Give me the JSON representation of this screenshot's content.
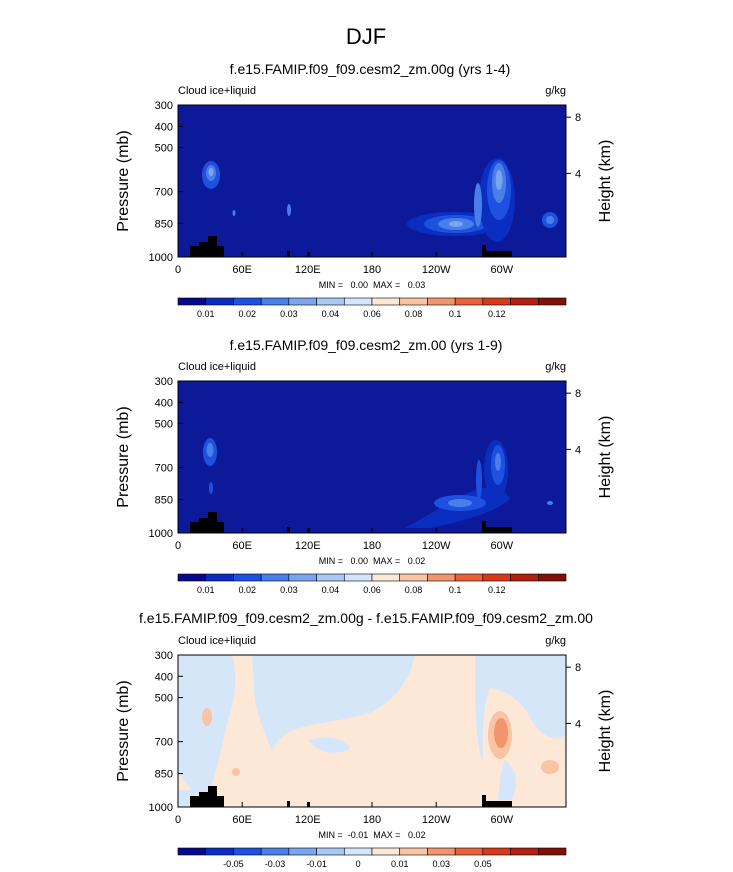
{
  "page_title": "DJF",
  "chart_data": [
    {
      "type": "contour",
      "title": "f.e15.FAMIP.f09_f09.cesm2_zm.00g (yrs 1-4)",
      "left_label": "Cloud ice+liquid",
      "units": "g/kg",
      "ylabel": "Pressure (mb)",
      "ylabel_right": "Height (km)",
      "pressure_ticks": [
        "300",
        "400",
        "500",
        "700",
        "850",
        "1000"
      ],
      "height_ticks": [
        "8",
        "4"
      ],
      "lon_ticks": [
        "0",
        "60E",
        "120E",
        "180",
        "120W",
        "60W"
      ],
      "stats": "MIN =   0.00  MAX =   0.03",
      "colorbar_labels": [
        "0.01",
        "0.02",
        "0.03",
        "0.04",
        "0.06",
        "0.08",
        "0.1",
        "0.12"
      ],
      "colorbar_colors": [
        "#08088a",
        "#0a2ec0",
        "#1f51e0",
        "#4a7ee8",
        "#7aa6f0",
        "#a9c9f5",
        "#d4e6fb",
        "#fde8d8",
        "#f9c4a4",
        "#f2946c",
        "#e8613a",
        "#d63a1a",
        "#b22010",
        "#801008"
      ]
    },
    {
      "type": "contour",
      "title": "f.e15.FAMIP.f09_f09.cesm2_zm.00 (yrs 1-9)",
      "left_label": "Cloud ice+liquid",
      "units": "g/kg",
      "ylabel": "Pressure (mb)",
      "ylabel_right": "Height (km)",
      "pressure_ticks": [
        "300",
        "400",
        "500",
        "700",
        "850",
        "1000"
      ],
      "height_ticks": [
        "8",
        "4"
      ],
      "lon_ticks": [
        "0",
        "60E",
        "120E",
        "180",
        "120W",
        "60W"
      ],
      "stats": "MIN =   0.00  MAX =   0.02",
      "colorbar_labels": [
        "0.01",
        "0.02",
        "0.03",
        "0.04",
        "0.06",
        "0.08",
        "0.1",
        "0.12"
      ],
      "colorbar_colors": [
        "#08088a",
        "#0a2ec0",
        "#1f51e0",
        "#4a7ee8",
        "#7aa6f0",
        "#a9c9f5",
        "#d4e6fb",
        "#fde8d8",
        "#f9c4a4",
        "#f2946c",
        "#e8613a",
        "#d63a1a",
        "#b22010",
        "#801008"
      ]
    },
    {
      "type": "contour",
      "title": "f.e15.FAMIP.f09_f09.cesm2_zm.00g - f.e15.FAMIP.f09_f09.cesm2_zm.00",
      "left_label": "Cloud ice+liquid",
      "units": "g/kg",
      "ylabel": "Pressure (mb)",
      "ylabel_right": "Height (km)",
      "pressure_ticks": [
        "300",
        "400",
        "500",
        "700",
        "850",
        "1000"
      ],
      "height_ticks": [
        "8",
        "4"
      ],
      "lon_ticks": [
        "0",
        "60E",
        "120E",
        "180",
        "120W",
        "60W"
      ],
      "stats": "MIN =  -0.01  MAX =   0.02",
      "colorbar_labels": [
        "-0.05",
        "-0.03",
        "-0.01",
        "0",
        "0.01",
        "0.03",
        "0.05"
      ],
      "colorbar_colors": [
        "#08088a",
        "#0a2ec0",
        "#1f51e0",
        "#4a7ee8",
        "#7aa6f0",
        "#a9c9f5",
        "#d4e6fb",
        "#fde8d8",
        "#f9c4a4",
        "#f2946c",
        "#e8613a",
        "#d63a1a",
        "#b22010",
        "#801008"
      ]
    }
  ],
  "colors": {
    "field_background_abs": "#0c1a9a",
    "field_background_diff": "#fde8d8",
    "negative_patch": "#d4e6fb",
    "terrain": "#000000"
  }
}
